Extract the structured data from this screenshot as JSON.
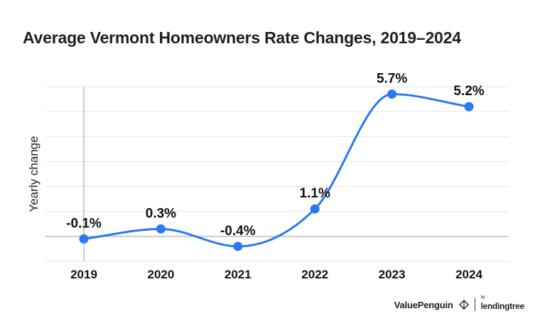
{
  "title": "Average Vermont Homeowners Rate Changes, 2019–2024",
  "brand": {
    "valuepenguin": "ValuePenguin",
    "by": "by",
    "lendingtree": "lendingtree"
  },
  "chart_data": {
    "type": "line",
    "title": "Average Vermont Homeowners Rate Changes, 2019–2024",
    "xlabel": "",
    "ylabel": "Yearly change",
    "categories": [
      "2019",
      "2020",
      "2021",
      "2022",
      "2023",
      "2024"
    ],
    "values": [
      -0.1,
      0.3,
      -0.4,
      1.1,
      5.7,
      5.2
    ],
    "labels": [
      "-0.1%",
      "0.3%",
      "-0.4%",
      "1.1%",
      "5.7%",
      "5.2%"
    ],
    "ylim": [
      -1,
      6
    ],
    "yticks": [
      -1,
      0,
      1,
      2,
      3,
      4,
      5,
      6
    ],
    "grid": true,
    "smooth": true,
    "line_color": "#2979f2",
    "grid_color": "#e3e3e3",
    "axis_color": "#9a9a9a"
  }
}
